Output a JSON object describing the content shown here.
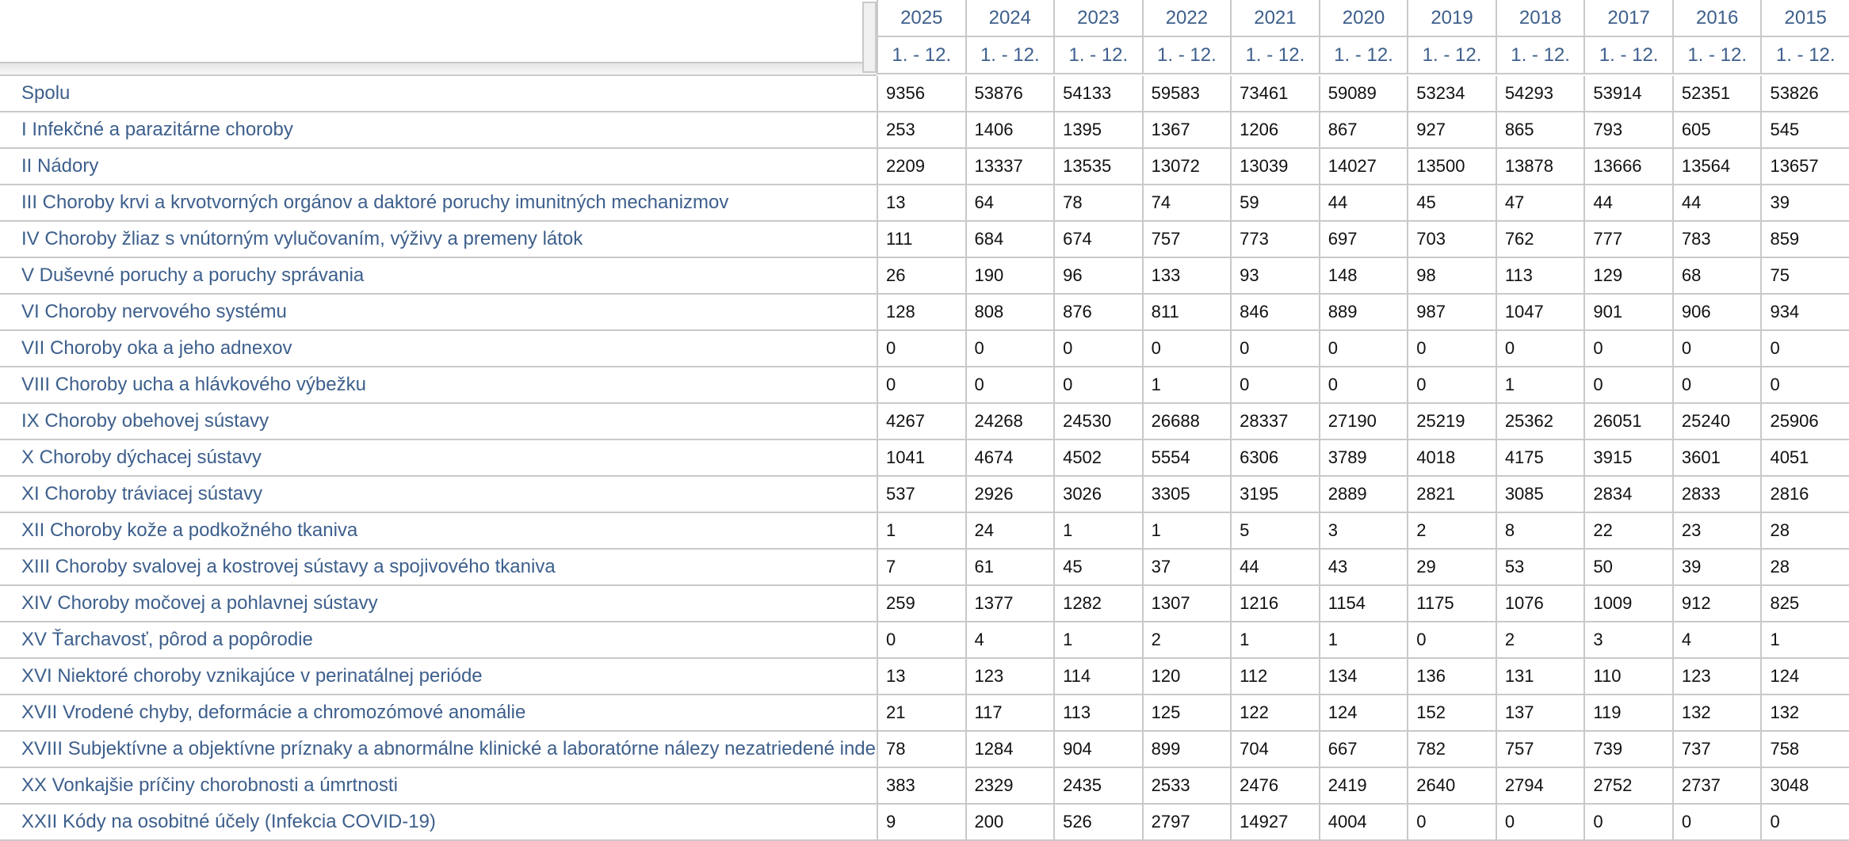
{
  "table": {
    "years": [
      2025,
      2024,
      2023,
      2022,
      2021,
      2020,
      2019,
      2018,
      2017,
      2016,
      2015
    ],
    "periods": [
      "1. - 12.",
      "1. - 12.",
      "1. - 12.",
      "1. - 12.",
      "1. - 12.",
      "1. - 12.",
      "1. - 12.",
      "1. - 12.",
      "1. - 12.",
      "1. - 12.",
      "1. - 12."
    ],
    "rows": [
      {
        "label": "Spolu",
        "values": [
          9356,
          53876,
          54133,
          59583,
          73461,
          59089,
          53234,
          54293,
          53914,
          52351,
          53826
        ]
      },
      {
        "label": "I Infekčné a parazitárne choroby",
        "values": [
          253,
          1406,
          1395,
          1367,
          1206,
          867,
          927,
          865,
          793,
          605,
          545
        ]
      },
      {
        "label": "II Nádory",
        "values": [
          2209,
          13337,
          13535,
          13072,
          13039,
          14027,
          13500,
          13878,
          13666,
          13564,
          13657
        ]
      },
      {
        "label": "III Choroby krvi a krvotvorných orgánov a daktoré poruchy imunitných mechanizmov",
        "values": [
          13,
          64,
          78,
          74,
          59,
          44,
          45,
          47,
          44,
          44,
          39
        ]
      },
      {
        "label": "IV Choroby žliaz s vnútorným vylučovaním, výživy a premeny látok",
        "values": [
          111,
          684,
          674,
          757,
          773,
          697,
          703,
          762,
          777,
          783,
          859
        ]
      },
      {
        "label": "V Duševné poruchy a poruchy správania",
        "values": [
          26,
          190,
          96,
          133,
          93,
          148,
          98,
          113,
          129,
          68,
          75
        ]
      },
      {
        "label": "VI Choroby nervového systému",
        "values": [
          128,
          808,
          876,
          811,
          846,
          889,
          987,
          1047,
          901,
          906,
          934
        ]
      },
      {
        "label": "VII Choroby oka a jeho adnexov",
        "values": [
          0,
          0,
          0,
          0,
          0,
          0,
          0,
          0,
          0,
          0,
          0
        ]
      },
      {
        "label": "VIII Choroby ucha a hlávkového výbežku",
        "values": [
          0,
          0,
          0,
          1,
          0,
          0,
          0,
          1,
          0,
          0,
          0
        ]
      },
      {
        "label": "IX Choroby obehovej sústavy",
        "values": [
          4267,
          24268,
          24530,
          26688,
          28337,
          27190,
          25219,
          25362,
          26051,
          25240,
          25906
        ]
      },
      {
        "label": "X Choroby dýchacej sústavy",
        "values": [
          1041,
          4674,
          4502,
          5554,
          6306,
          3789,
          4018,
          4175,
          3915,
          3601,
          4051
        ]
      },
      {
        "label": "XI Choroby tráviacej sústavy",
        "values": [
          537,
          2926,
          3026,
          3305,
          3195,
          2889,
          2821,
          3085,
          2834,
          2833,
          2816
        ]
      },
      {
        "label": "XII Choroby kože a podkožného tkaniva",
        "values": [
          1,
          24,
          1,
          1,
          5,
          3,
          2,
          8,
          22,
          23,
          28
        ]
      },
      {
        "label": "XIII Choroby svalovej a kostrovej sústavy a spojivového tkaniva",
        "values": [
          7,
          61,
          45,
          37,
          44,
          43,
          29,
          53,
          50,
          39,
          28
        ]
      },
      {
        "label": "XIV Choroby močovej a pohlavnej sústavy",
        "values": [
          259,
          1377,
          1282,
          1307,
          1216,
          1154,
          1175,
          1076,
          1009,
          912,
          825
        ]
      },
      {
        "label": "XV Ťarchavosť, pôrod a popôrodie",
        "values": [
          0,
          4,
          1,
          2,
          1,
          1,
          0,
          2,
          3,
          4,
          1
        ]
      },
      {
        "label": "XVI Niektoré choroby vznikajúce v perinatálnej perióde",
        "values": [
          13,
          123,
          114,
          120,
          112,
          134,
          136,
          131,
          110,
          123,
          124
        ]
      },
      {
        "label": "XVII Vrodené chyby, deformácie a chromozómové anomálie",
        "values": [
          21,
          117,
          113,
          125,
          122,
          124,
          152,
          137,
          119,
          132,
          132
        ]
      },
      {
        "label": "XVIII Subjektívne a objektívne príznaky a abnormálne klinické a laboratórne nálezy nezatriedené inde",
        "values": [
          78,
          1284,
          904,
          899,
          704,
          667,
          782,
          757,
          739,
          737,
          758
        ]
      },
      {
        "label": "XX Vonkajšie príčiny chorobnosti a úmrtnosti",
        "values": [
          383,
          2329,
          2435,
          2533,
          2476,
          2419,
          2640,
          2794,
          2752,
          2737,
          3048
        ]
      },
      {
        "label": "XXII Kódy na osobitné účely (Infekcia COVID-19)",
        "values": [
          9,
          200,
          526,
          2797,
          14927,
          4004,
          0,
          0,
          0,
          0,
          0
        ]
      }
    ]
  }
}
